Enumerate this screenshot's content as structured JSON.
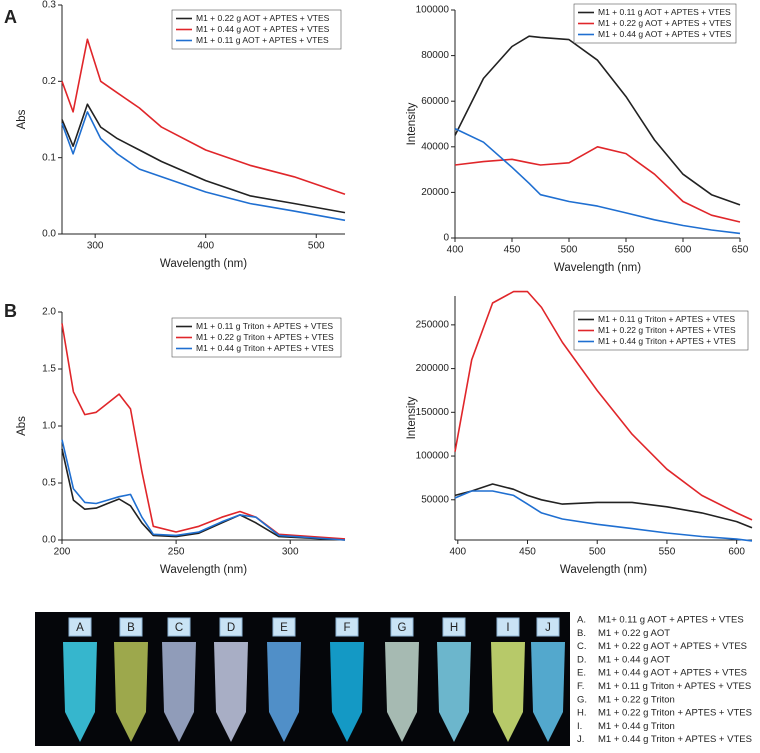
{
  "panel_labels": [
    "A",
    "B"
  ],
  "chart_data": [
    {
      "type": "line",
      "x_label": "Wavelength (nm)",
      "y_label": "Abs",
      "legend": "upper right",
      "x": [
        270,
        280,
        293,
        305,
        320,
        340,
        360,
        400,
        440,
        480,
        526
      ],
      "xlim": [
        270,
        526
      ],
      "xticks": [
        300,
        400,
        500
      ],
      "ylim": [
        0,
        0.3
      ],
      "yticks": [
        {
          "value": 0,
          "label": "0.0"
        },
        0.1,
        0.2,
        0.3
      ],
      "series": [
        {
          "name": "M1 + 0.22 g AOT + APTES + VTES",
          "color": "#222222",
          "values": [
            0.15,
            0.115,
            0.17,
            0.14,
            0.125,
            0.11,
            0.095,
            0.07,
            0.05,
            0.04,
            0.028
          ]
        },
        {
          "name": "M1 + 0.44 g AOT + APTES + VTES",
          "color": "#e0262a",
          "values": [
            0.2,
            0.16,
            0.255,
            0.2,
            0.185,
            0.165,
            0.14,
            0.11,
            0.09,
            0.075,
            0.052
          ]
        },
        {
          "name": "M1 + 0.11 g AOT + APTES + VTES",
          "color": "#1f6fd1",
          "values": [
            0.145,
            0.105,
            0.16,
            0.125,
            0.105,
            0.085,
            0.075,
            0.055,
            0.04,
            0.03,
            0.018
          ]
        }
      ]
    },
    {
      "type": "line",
      "x_label": "Wavelength (nm)",
      "y_label": "Intensity",
      "legend": "upper right",
      "x": [
        400,
        425,
        450,
        465,
        475,
        500,
        525,
        550,
        575,
        600,
        625,
        650
      ],
      "xlim": [
        400,
        650
      ],
      "xticks": [
        400,
        450,
        500,
        550,
        600,
        650
      ],
      "ylim": [
        0,
        100000
      ],
      "yticks": [
        0,
        20000,
        40000,
        60000,
        80000,
        100000
      ],
      "series": [
        {
          "name": "M1 + 0.11 g AOT + APTES + VTES",
          "color": "#222222",
          "values": [
            45000,
            70000,
            84000,
            88500,
            88000,
            87000,
            78000,
            62000,
            43000,
            28000,
            19000,
            14500
          ]
        },
        {
          "name": "M1 + 0.22 g AOT + APTES + VTES",
          "color": "#e0262a",
          "values": [
            32000,
            33500,
            34500,
            33000,
            32000,
            33000,
            40000,
            37000,
            28000,
            16000,
            10000,
            7000
          ]
        },
        {
          "name": "M1 + 0.44 g AOT + APTES + VTES",
          "color": "#1f6fd1",
          "values": [
            48000,
            42000,
            31000,
            24000,
            19000,
            16000,
            14000,
            11000,
            8000,
            5500,
            3500,
            2000
          ]
        }
      ]
    },
    {
      "type": "line",
      "x_label": "Wavelength (nm)",
      "y_label": "Abs",
      "legend": "upper right",
      "x": [
        200,
        205,
        210,
        215,
        220,
        225,
        230,
        235,
        240,
        250,
        260,
        270,
        278,
        285,
        295,
        324
      ],
      "xlim": [
        200,
        324
      ],
      "xticks": [
        200,
        250,
        300
      ],
      "ylim": [
        0,
        2
      ],
      "yticks": [
        {
          "value": 0,
          "label": "0.0"
        },
        0.5,
        {
          "value": 1,
          "label": "1.0"
        },
        1.5,
        {
          "value": 2,
          "label": "2.0"
        }
      ],
      "series": [
        {
          "name": "M1 + 0.11 g Triton + APTES + VTES",
          "color": "#222222",
          "values": [
            0.8,
            0.35,
            0.27,
            0.28,
            0.32,
            0.36,
            0.3,
            0.15,
            0.04,
            0.03,
            0.06,
            0.15,
            0.22,
            0.15,
            0.03,
            0.0
          ]
        },
        {
          "name": "M1 + 0.22 g Triton + APTES + VTES",
          "color": "#e0262a",
          "values": [
            1.9,
            1.3,
            1.1,
            1.12,
            1.2,
            1.28,
            1.15,
            0.6,
            0.12,
            0.07,
            0.12,
            0.2,
            0.25,
            0.2,
            0.05,
            0.01
          ]
        },
        {
          "name": "M1 + 0.44 g Triton + APTES + VTES",
          "color": "#1f6fd1",
          "values": [
            0.88,
            0.45,
            0.33,
            0.32,
            0.35,
            0.38,
            0.4,
            0.2,
            0.05,
            0.04,
            0.07,
            0.16,
            0.22,
            0.2,
            0.04,
            0.0
          ]
        }
      ]
    },
    {
      "type": "line",
      "x_label": "Wavelength (nm)",
      "y_label": "Intensity",
      "legend": "upper right",
      "x": [
        398,
        410,
        425,
        440,
        450,
        460,
        475,
        500,
        525,
        550,
        575,
        600,
        611
      ],
      "xlim": [
        398,
        611
      ],
      "xticks": [
        400,
        450,
        500,
        550,
        600
      ],
      "ylim": [
        4000,
        283000
      ],
      "yticks": [
        50000,
        100000,
        150000,
        200000,
        250000
      ],
      "series": [
        {
          "name": "M1 + 0.11 g Triton + APTES + VTES",
          "color": "#222222",
          "values": [
            55000,
            60000,
            68000,
            62000,
            55000,
            50000,
            45000,
            47000,
            47000,
            42000,
            35000,
            25000,
            18000
          ]
        },
        {
          "name": "M1 + 0.22 g Triton + APTES + VTES",
          "color": "#e0262a",
          "values": [
            105000,
            210000,
            275000,
            288000,
            288000,
            270000,
            230000,
            175000,
            125000,
            85000,
            55000,
            35000,
            27000
          ]
        },
        {
          "name": "M1 + 0.44 g Triton + APTES + VTES",
          "color": "#1f6fd1",
          "values": [
            52000,
            60000,
            60000,
            55000,
            45000,
            35000,
            28000,
            22000,
            17000,
            12000,
            8000,
            5000,
            3000
          ]
        }
      ]
    }
  ],
  "photo": {
    "tube_labels": [
      "A",
      "B",
      "C",
      "D",
      "E",
      "F",
      "G",
      "H",
      "I",
      "J"
    ]
  },
  "key": [
    {
      "letter": "A.",
      "text": "M1+ 0.11 g AOT + APTES + VTES"
    },
    {
      "letter": "B.",
      "text": "M1 + 0.22 g AOT"
    },
    {
      "letter": "C.",
      "text": "M1 + 0.22 g AOT + APTES + VTES"
    },
    {
      "letter": "D.",
      "text": "M1 + 0.44 g AOT"
    },
    {
      "letter": "E.",
      "text": "M1 + 0.44 g AOT + APTES + VTES"
    },
    {
      "letter": "F.",
      "text": "M1 + 0.11 g Triton + APTES + VTES"
    },
    {
      "letter": "G.",
      "text": "M1 + 0.22 g Triton"
    },
    {
      "letter": "H.",
      "text": "M1 + 0.22 g Triton + APTES + VTES"
    },
    {
      "letter": "I.",
      "text": "M1 + 0.44 g Triton"
    },
    {
      "letter": "J.",
      "text": "M1 + 0.44 g Triton + APTES + VTES"
    }
  ]
}
